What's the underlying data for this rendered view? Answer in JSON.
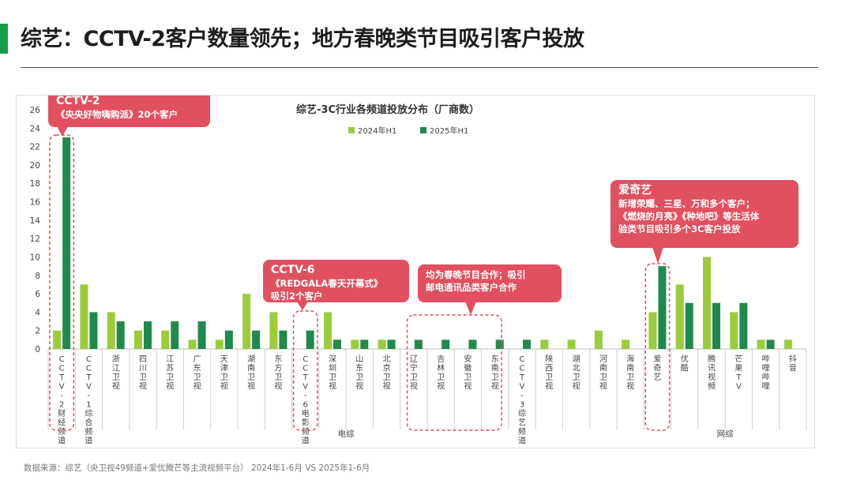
{
  "page": {
    "title": "综艺：CCTV-2客户数量领先；地方春晚类节目吸引客户投放",
    "source": "数据来源：综艺（央卫视49频道+爱优腾芒等主流视频平台） 2024年1-6月 VS 2025年1-6月"
  },
  "colors": {
    "accent": "#1a9c4a",
    "series_2024": "#9ccc3a",
    "series_2025": "#1f8a4c",
    "callout_red": "#e0505e",
    "dashed_red": "#e0505e"
  },
  "chart_data": {
    "type": "bar",
    "title": "综艺-3C行业各频道投放分布（厂商数）",
    "ylim": [
      0,
      26
    ],
    "yticks": [
      0,
      2,
      4,
      6,
      8,
      10,
      12,
      14,
      16,
      18,
      20,
      22,
      24,
      26
    ],
    "grid": false,
    "legend_position": "top-center",
    "categories": [
      "CCTV-2财经频道",
      "CCTV-1综合频道",
      "浙江卫视",
      "四川卫视",
      "江苏卫视",
      "广东卫视",
      "天津卫视",
      "湖南卫视",
      "东方卫视",
      "CCTV-6电影频道",
      "深圳卫视",
      "山东卫视",
      "北京卫视",
      "辽宁卫视",
      "吉林卫视",
      "安徽卫视",
      "东南卫视",
      "CCTV-3综艺频道",
      "陕西卫视",
      "湖北卫视",
      "河南卫视",
      "海南卫视",
      "爱奇艺",
      "优酷",
      "腾讯视频",
      "芒果TV",
      "哔哩哔哩",
      "抖音"
    ],
    "series": [
      {
        "name": "2024年H1",
        "values": [
          2,
          7,
          4,
          2,
          2,
          1,
          1,
          6,
          4,
          0,
          4,
          1,
          1,
          0,
          0,
          0,
          0,
          0,
          1,
          1,
          2,
          1,
          4,
          7,
          10,
          4,
          1,
          1
        ]
      },
      {
        "name": "2025年H1",
        "values": [
          23,
          4,
          3,
          3,
          3,
          3,
          2,
          2,
          2,
          2,
          1,
          1,
          1,
          1,
          1,
          1,
          1,
          1,
          0,
          0,
          0,
          0,
          9,
          5,
          5,
          5,
          1,
          0
        ]
      }
    ],
    "groups": [
      {
        "label": "电综",
        "from": 0,
        "to": 21
      },
      {
        "label": "网综",
        "from": 22,
        "to": 27
      }
    ],
    "annotations": [
      {
        "title": "CCTV-2",
        "lines": [
          "《央央好物嗨购派》20个客户"
        ]
      },
      {
        "title": "CCTV-6",
        "lines": [
          "《REDGALA春天开幕式》",
          "吸引2个客户"
        ]
      },
      {
        "title": "",
        "lines": [
          "均为春晚节目合作；吸引",
          "邮电通讯品类客户合作"
        ]
      },
      {
        "title": "爱奇艺",
        "lines": [
          "新增荣耀、三星、万和多个客户；",
          "《燃烧的月亮》《种地吧》等生活体",
          "验类节目吸引多个3C客户投放"
        ]
      }
    ]
  }
}
